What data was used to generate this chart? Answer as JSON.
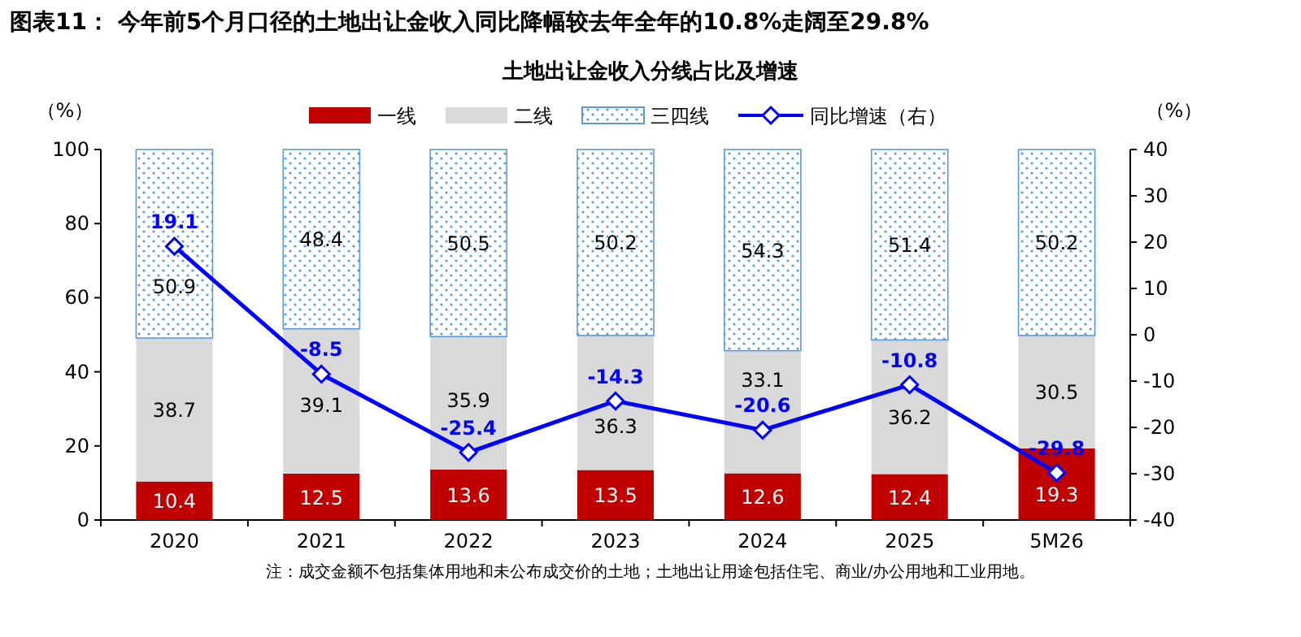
{
  "chart_data": {
    "type": "bar",
    "title": "图表11：  今年前5个月口径的土地出让金收入同比降幅较去年全年的10.8%走阔至29.8%",
    "subtitle": "土地出让金收入分线占比及增速",
    "ylabel": "（%）",
    "y2label": "（%）",
    "categories": [
      "2020",
      "2021",
      "2022",
      "2023",
      "2024",
      "2025",
      "5M26"
    ],
    "stacked": true,
    "series": [
      {
        "name": "一线",
        "color": "#c00000",
        "values": [
          10.4,
          12.5,
          13.6,
          13.5,
          12.6,
          12.4,
          19.3
        ]
      },
      {
        "name": "二线",
        "color": "#d9d9d9",
        "values": [
          38.7,
          39.1,
          35.9,
          36.3,
          33.1,
          36.2,
          30.5
        ]
      },
      {
        "name": "三四线",
        "color": "#5b9bd5",
        "values": [
          50.9,
          48.4,
          50.5,
          50.2,
          54.3,
          51.4,
          50.2
        ]
      },
      {
        "name": "同比增速（右）",
        "type": "line",
        "axis": "y2",
        "color": "#0000ff",
        "values": [
          19.1,
          -8.5,
          -25.4,
          -14.3,
          -20.6,
          -10.8,
          -29.8
        ]
      }
    ],
    "ylim": [
      0,
      100
    ],
    "yticks": [
      0,
      20,
      40,
      60,
      80,
      100
    ],
    "y2lim": [
      -40,
      40
    ],
    "y2ticks": [
      -40,
      -30,
      -20,
      -10,
      0,
      10,
      20,
      30,
      40
    ],
    "marker": "diamond",
    "data_labels": true,
    "legend": "top",
    "grid": false,
    "annotations": [
      "注：成交金额不包括集体用地和未公布成交价的土地；土地出让用途包括住宅、商业/办公用地和工业用地。"
    ]
  }
}
